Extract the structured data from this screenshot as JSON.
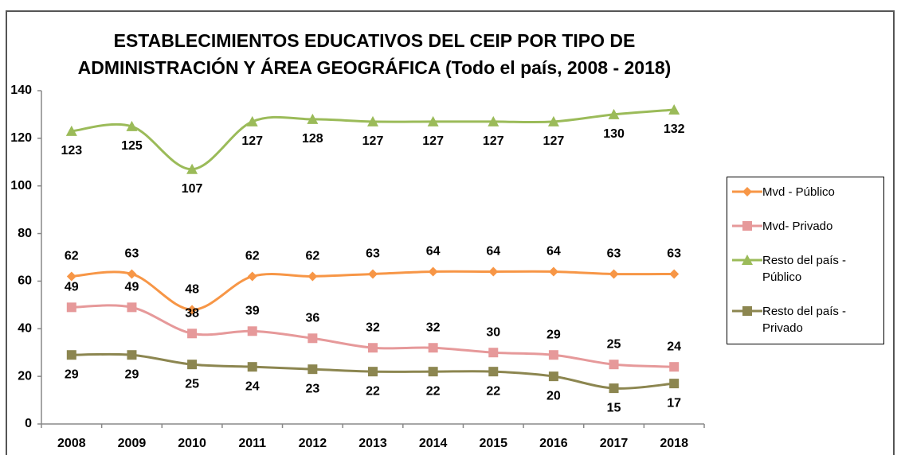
{
  "chart_data": {
    "type": "line",
    "title": "ESTABLECIMIENTOS EDUCATIVOS DEL CEIP POR TIPO DE ADMINISTRACIÓN Y ÁREA GEOGRÁFICA (Todo el país, 2008 - 2018)",
    "categories": [
      "2008",
      "2009",
      "2010",
      "2011",
      "2012",
      "2013",
      "2014",
      "2015",
      "2016",
      "2017",
      "2018"
    ],
    "series": [
      {
        "name": "Mvd - Público",
        "color": "#f79646",
        "marker": "diamond",
        "label_position": "above",
        "values": [
          62,
          63,
          48,
          62,
          62,
          63,
          64,
          64,
          64,
          63,
          63
        ]
      },
      {
        "name": "Mvd- Privado",
        "color": "#e6999a",
        "marker": "square",
        "label_position": "above",
        "values": [
          49,
          49,
          38,
          39,
          36,
          32,
          32,
          30,
          29,
          25,
          24
        ]
      },
      {
        "name": "Resto del país - Público",
        "color": "#9bbb59",
        "marker": "triangle",
        "label_position": "below",
        "values": [
          123,
          125,
          107,
          127,
          128,
          127,
          127,
          127,
          127,
          130,
          132
        ]
      },
      {
        "name": "Resto del país - Privado",
        "color": "#8c8650",
        "marker": "square",
        "label_position": "below",
        "values": [
          29,
          29,
          25,
          24,
          23,
          22,
          22,
          22,
          20,
          15,
          17
        ]
      }
    ],
    "ylim": [
      0,
      140
    ],
    "yticks": [
      0,
      20,
      40,
      60,
      80,
      100,
      120,
      140
    ],
    "grid": false,
    "legend": "right",
    "smooth": true
  }
}
